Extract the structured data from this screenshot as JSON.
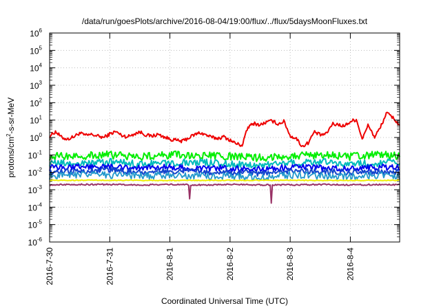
{
  "chart_data": {
    "type": "line",
    "title": "/data/run/goesPlots/archive/2016-08-04/19:00/flux/../flux/5daysMoonFluxes.txt",
    "xlabel": "Coordinated Universal Time (UTC)",
    "ylabel": "protons/cm²-s-sr-MeV",
    "ylabel_parts": {
      "pre": "protons/cm",
      "sup": "2",
      "post": "-s-sr-MeV"
    },
    "y_scale": "log",
    "ylim_exp": [
      -6,
      6
    ],
    "y_ticks": [
      {
        "base": "10",
        "exp": "-6"
      },
      {
        "base": "10",
        "exp": "-5"
      },
      {
        "base": "10",
        "exp": "-4"
      },
      {
        "base": "10",
        "exp": "-3"
      },
      {
        "base": "10",
        "exp": "-2"
      },
      {
        "base": "10",
        "exp": "-1"
      },
      {
        "base": "10",
        "exp": "0"
      },
      {
        "base": "10",
        "exp": "1"
      },
      {
        "base": "10",
        "exp": "2"
      },
      {
        "base": "10",
        "exp": "3"
      },
      {
        "base": "10",
        "exp": "4"
      },
      {
        "base": "10",
        "exp": "5"
      },
      {
        "base": "10",
        "exp": "6"
      }
    ],
    "x_ticks": [
      "2016-7-30",
      "2016-7-31",
      "2016-8-1",
      "2016-8-2",
      "2016-8-3",
      "2016-8-4"
    ],
    "xlim_days": [
      0,
      5.82
    ],
    "grid": true,
    "legend": "none",
    "series": [
      {
        "color": "#ee0000",
        "x_days": [
          0,
          0.1,
          0.2,
          0.3,
          0.4,
          0.5,
          0.6,
          0.7,
          0.8,
          0.9,
          1.0,
          1.1,
          1.2,
          1.3,
          1.4,
          1.5,
          1.6,
          1.7,
          1.8,
          1.9,
          2.0,
          2.1,
          2.2,
          2.3,
          2.4,
          2.5,
          2.6,
          2.7,
          2.8,
          2.9,
          3.0,
          3.1,
          3.2,
          3.3,
          3.4,
          3.5,
          3.6,
          3.7,
          3.8,
          3.9,
          4.0,
          4.1,
          4.2,
          4.3,
          4.4,
          4.5,
          4.6,
          4.7,
          4.8,
          4.9,
          5.0,
          5.1,
          5.2,
          5.3,
          5.4,
          5.5,
          5.6,
          5.7,
          5.82
        ],
        "values": [
          1.2,
          2.2,
          1.0,
          0.8,
          1.1,
          1.8,
          1.3,
          1.5,
          1.2,
          1.0,
          1.6,
          2.2,
          1.3,
          1.1,
          1.6,
          2.1,
          1.4,
          1.2,
          1.5,
          1.1,
          0.8,
          0.7,
          0.6,
          0.9,
          1.4,
          1.9,
          1.4,
          1.0,
          0.9,
          1.1,
          0.7,
          0.45,
          0.35,
          4.0,
          6.5,
          5.2,
          7.5,
          9.0,
          6.0,
          8.5,
          1.2,
          0.9,
          0.3,
          0.5,
          2.1,
          1.4,
          1.6,
          6.0,
          5.5,
          4.5,
          8.2,
          11,
          0.8,
          5.5,
          1.0,
          3.8,
          25,
          15,
          5.0
        ]
      },
      {
        "color": "#00ee00",
        "x_days": [
          0,
          0.5,
          1.0,
          1.5,
          2.0,
          2.5,
          3.0,
          3.5,
          4.0,
          4.5,
          5.0,
          5.5,
          5.82
        ],
        "values": [
          0.08,
          0.09,
          0.1,
          0.08,
          0.1,
          0.09,
          0.08,
          0.07,
          0.09,
          0.1,
          0.08,
          0.1,
          0.09
        ]
      },
      {
        "color": "#00bbbb",
        "x_days": [
          0,
          0.5,
          1.0,
          1.5,
          2.0,
          2.5,
          3.0,
          3.5,
          4.0,
          4.5,
          5.0,
          5.5,
          5.82
        ],
        "values": [
          0.035,
          0.03,
          0.04,
          0.03,
          0.035,
          0.04,
          0.03,
          0.025,
          0.035,
          0.04,
          0.03,
          0.035,
          0.04
        ]
      },
      {
        "color": "#0000ee",
        "x_days": [
          0,
          0.5,
          1.0,
          1.5,
          2.0,
          2.5,
          3.0,
          3.5,
          4.0,
          4.5,
          5.0,
          5.5,
          5.82
        ],
        "values": [
          0.018,
          0.02,
          0.02,
          0.017,
          0.02,
          0.018,
          0.017,
          0.015,
          0.02,
          0.018,
          0.016,
          0.02,
          0.018
        ]
      },
      {
        "color": "#1144cc",
        "x_days": [
          0,
          0.5,
          1.0,
          1.5,
          2.0,
          2.5,
          3.0,
          3.5,
          4.0,
          4.5,
          5.0,
          5.5,
          5.82
        ],
        "values": [
          0.01,
          0.012,
          0.013,
          0.01,
          0.012,
          0.011,
          0.01,
          0.009,
          0.012,
          0.011,
          0.01,
          0.012,
          0.01
        ]
      },
      {
        "color": "#2299cc",
        "x_days": [
          0,
          0.5,
          1.0,
          1.5,
          2.0,
          2.5,
          3.0,
          3.5,
          4.0,
          4.5,
          5.0,
          5.5,
          5.82
        ],
        "values": [
          0.006,
          0.007,
          0.007,
          0.006,
          0.007,
          0.006,
          0.006,
          0.005,
          0.007,
          0.006,
          0.006,
          0.007,
          0.006
        ]
      },
      {
        "color": "#eeee00",
        "x_days": [
          0,
          1.0,
          2.0,
          3.0,
          4.0,
          5.0,
          5.82
        ],
        "values": [
          0.0035,
          0.0035,
          0.0034,
          0.0035,
          0.0035,
          0.0034,
          0.0035
        ]
      },
      {
        "color": "#993366",
        "x_days": [
          0,
          0.5,
          1.0,
          1.5,
          2.0,
          2.5,
          3.0,
          3.5,
          4.0,
          4.5,
          5.0,
          5.5,
          5.82
        ],
        "values": [
          0.0019,
          0.002,
          0.002,
          0.0019,
          0.002,
          0.0019,
          0.002,
          0.0019,
          0.0019,
          0.002,
          0.0019,
          0.002,
          0.0019
        ],
        "dips": [
          {
            "x_days": 2.33,
            "value": 0.0003
          },
          {
            "x_days": 3.68,
            "value": 0.00017
          }
        ]
      }
    ]
  }
}
